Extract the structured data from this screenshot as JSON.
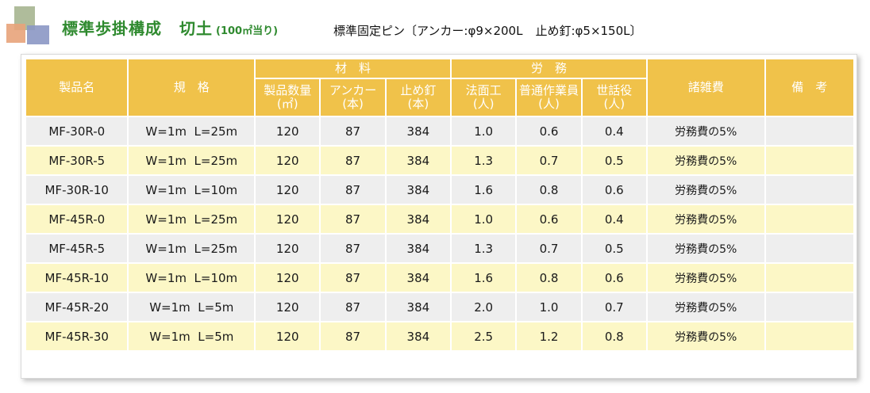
{
  "header": {
    "title": "標準歩掛構成",
    "title_type": "切土",
    "title_unit": "(100㎡当り)",
    "note_pin": "標準固定ピン〔アンカー:φ9×200L",
    "note_nail": "止め釘:φ5×150L〕"
  },
  "table": {
    "col_product": "製品名",
    "col_spec": "規　格",
    "group_materials": "材　料",
    "group_labor": "労　務",
    "col_misc": "諸雑費",
    "col_remarks": "備　考",
    "sub_columns": [
      "製品数量\n(㎡)",
      "アンカー\n(本)",
      "止め釘\n(本)",
      "法面工\n(人)",
      "普通作業員\n(人)",
      "世話役\n(人)"
    ],
    "rows": [
      {
        "product": "MF-30R-0",
        "spec": "W=1m  L=25m",
        "qty": "120",
        "anchor": "87",
        "nail": "384",
        "slope": "1.0",
        "worker": "0.6",
        "foreman": "0.4",
        "misc": "労務費の5%",
        "remarks": ""
      },
      {
        "product": "MF-30R-5",
        "spec": "W=1m  L=25m",
        "qty": "120",
        "anchor": "87",
        "nail": "384",
        "slope": "1.3",
        "worker": "0.7",
        "foreman": "0.5",
        "misc": "労務費の5%",
        "remarks": ""
      },
      {
        "product": "MF-30R-10",
        "spec": "W=1m  L=10m",
        "qty": "120",
        "anchor": "87",
        "nail": "384",
        "slope": "1.6",
        "worker": "0.8",
        "foreman": "0.6",
        "misc": "労務費の5%",
        "remarks": ""
      },
      {
        "product": "MF-45R-0",
        "spec": "W=1m  L=25m",
        "qty": "120",
        "anchor": "87",
        "nail": "384",
        "slope": "1.0",
        "worker": "0.6",
        "foreman": "0.4",
        "misc": "労務費の5%",
        "remarks": ""
      },
      {
        "product": "MF-45R-5",
        "spec": "W=1m  L=25m",
        "qty": "120",
        "anchor": "87",
        "nail": "384",
        "slope": "1.3",
        "worker": "0.7",
        "foreman": "0.5",
        "misc": "労務費の5%",
        "remarks": ""
      },
      {
        "product": "MF-45R-10",
        "spec": "W=1m  L=10m",
        "qty": "120",
        "anchor": "87",
        "nail": "384",
        "slope": "1.6",
        "worker": "0.8",
        "foreman": "0.6",
        "misc": "労務費の5%",
        "remarks": ""
      },
      {
        "product": "MF-45R-20",
        "spec": "W=1m  L=5m",
        "qty": "120",
        "anchor": "87",
        "nail": "384",
        "slope": "2.0",
        "worker": "1.0",
        "foreman": "0.7",
        "misc": "労務費の5%",
        "remarks": ""
      },
      {
        "product": "MF-45R-30",
        "spec": "W=1m  L=5m",
        "qty": "120",
        "anchor": "87",
        "nail": "384",
        "slope": "2.5",
        "worker": "1.2",
        "foreman": "0.8",
        "misc": "労務費の5%",
        "remarks": ""
      }
    ]
  },
  "colors": {
    "header_bg": "#f0c24a",
    "row_gray": "#eeeeee",
    "row_yellow": "#fcf7c6",
    "title_green": "#2f8a2f"
  }
}
